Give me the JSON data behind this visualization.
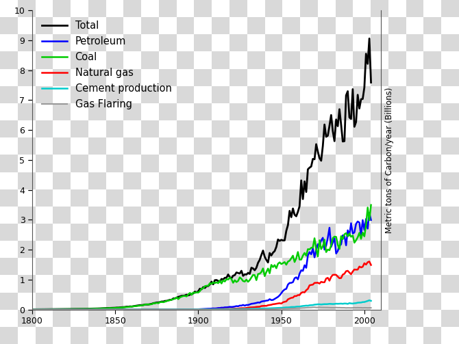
{
  "title": "",
  "ylabel": "Metric tons of Carbon/year (Billions)",
  "xlim": [
    1800,
    2010
  ],
  "ylim": [
    0,
    10
  ],
  "yticks": [
    0,
    1,
    2,
    3,
    4,
    5,
    6,
    7,
    8,
    9,
    10
  ],
  "xticks": [
    1800,
    1850,
    1900,
    1950,
    2000
  ],
  "legend_labels": [
    "Total",
    "Petroleum",
    "Coal",
    "Natural gas",
    "Cement production",
    "Gas Flaring"
  ],
  "legend_colors": [
    "#000000",
    "#0000ff",
    "#00cc00",
    "#ff0000",
    "#00cccc",
    "#999999"
  ],
  "line_widths": [
    2.0,
    1.8,
    1.8,
    1.8,
    1.8,
    1.5
  ],
  "checkerboard_light": "#d9d9d9",
  "checkerboard_dark": "#ffffff",
  "checkerboard_n": 26,
  "fig_width": 6.7,
  "fig_height": 5.03,
  "dpi": 100
}
